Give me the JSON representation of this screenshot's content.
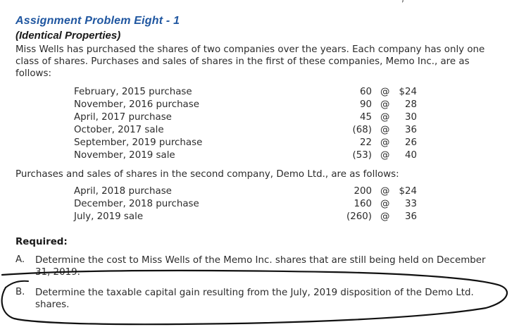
{
  "problem": {
    "title": "Assignment Problem Eight - 1",
    "subtitle": "(Identical Properties)",
    "intro": "Miss Wells has purchased the shares of two companies over the years. Each company has only one class of shares. Purchases and sales of shares in the first of these companies, Memo Inc., are as follows:"
  },
  "memo": {
    "transactions": [
      {
        "desc": "February, 2015 purchase",
        "qty": "60",
        "at": "@",
        "price": "$24"
      },
      {
        "desc": "November, 2016 purchase",
        "qty": "90",
        "at": "@",
        "price": "28"
      },
      {
        "desc": "April, 2017 purchase",
        "qty": "45",
        "at": "@",
        "price": "30"
      },
      {
        "desc": "October, 2017 sale",
        "qty": "(68)",
        "at": "@",
        "price": "36"
      },
      {
        "desc": "September, 2019 purchase",
        "qty": "22",
        "at": "@",
        "price": "26"
      },
      {
        "desc": "November, 2019 sale",
        "qty": "(53)",
        "at": "@",
        "price": "40"
      }
    ]
  },
  "demo": {
    "intro": "Purchases and sales of shares in the second company, Demo Ltd., are as follows:",
    "transactions": [
      {
        "desc": "April, 2018 purchase",
        "qty": "200",
        "at": "@",
        "price": "$24"
      },
      {
        "desc": "December, 2018 purchase",
        "qty": "160",
        "at": "@",
        "price": "33"
      },
      {
        "desc": "July, 2019 sale",
        "qty": "(260)",
        "at": "@",
        "price": "36"
      }
    ]
  },
  "required": {
    "label": "Required:",
    "questions": [
      {
        "letter": "A.",
        "text": "Determine the cost to Miss Wells of the Memo Inc. shares that are still being held on December 31, 2019."
      },
      {
        "letter": "B.",
        "text": "Determine the taxable capital gain resulting from the July, 2019 disposition of the Demo Ltd. shares."
      }
    ]
  },
  "annotation": {
    "ink_color": "#111111"
  }
}
